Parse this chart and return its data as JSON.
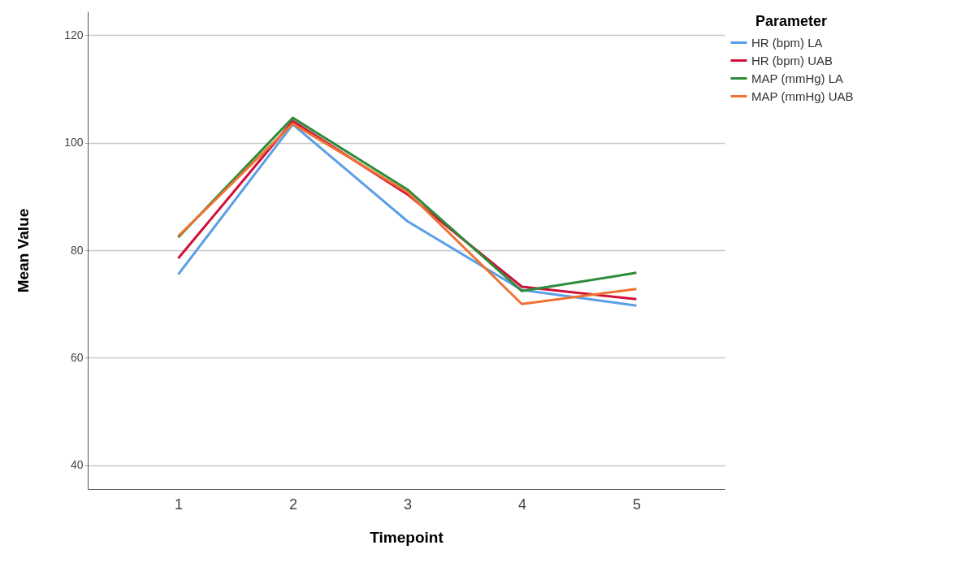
{
  "chart_data": {
    "type": "line",
    "xlabel": "Timepoint",
    "ylabel": "Mean Value",
    "legend_title": "Parameter",
    "x": [
      1,
      2,
      3,
      4,
      5
    ],
    "xlim": [
      0.21,
      5.77
    ],
    "xticks": [
      1,
      2,
      3,
      4,
      5
    ],
    "ylim": [
      35.6,
      124.4
    ],
    "yticks": [
      40,
      60,
      80,
      100,
      120
    ],
    "grid": "y",
    "legend": "top right",
    "marker": "none",
    "line_style": "solid",
    "series": [
      {
        "name": "HR (bpm) LA",
        "color": "#5b9ee6",
        "values": [
          75.5,
          103.4,
          85.4,
          72.6,
          69.7
        ]
      },
      {
        "name": "HR (bpm) UAB",
        "color": "#d0103a",
        "values": [
          78.5,
          104.0,
          90.4,
          73.2,
          70.9
        ]
      },
      {
        "name": "MAP (mmHg) LA",
        "color": "#2e8b3a",
        "values": [
          82.4,
          104.6,
          91.3,
          72.4,
          75.8
        ]
      },
      {
        "name": "MAP (mmHg) UAB",
        "color": "#f07232",
        "values": [
          82.6,
          103.5,
          90.8,
          70.0,
          72.8
        ]
      }
    ]
  }
}
